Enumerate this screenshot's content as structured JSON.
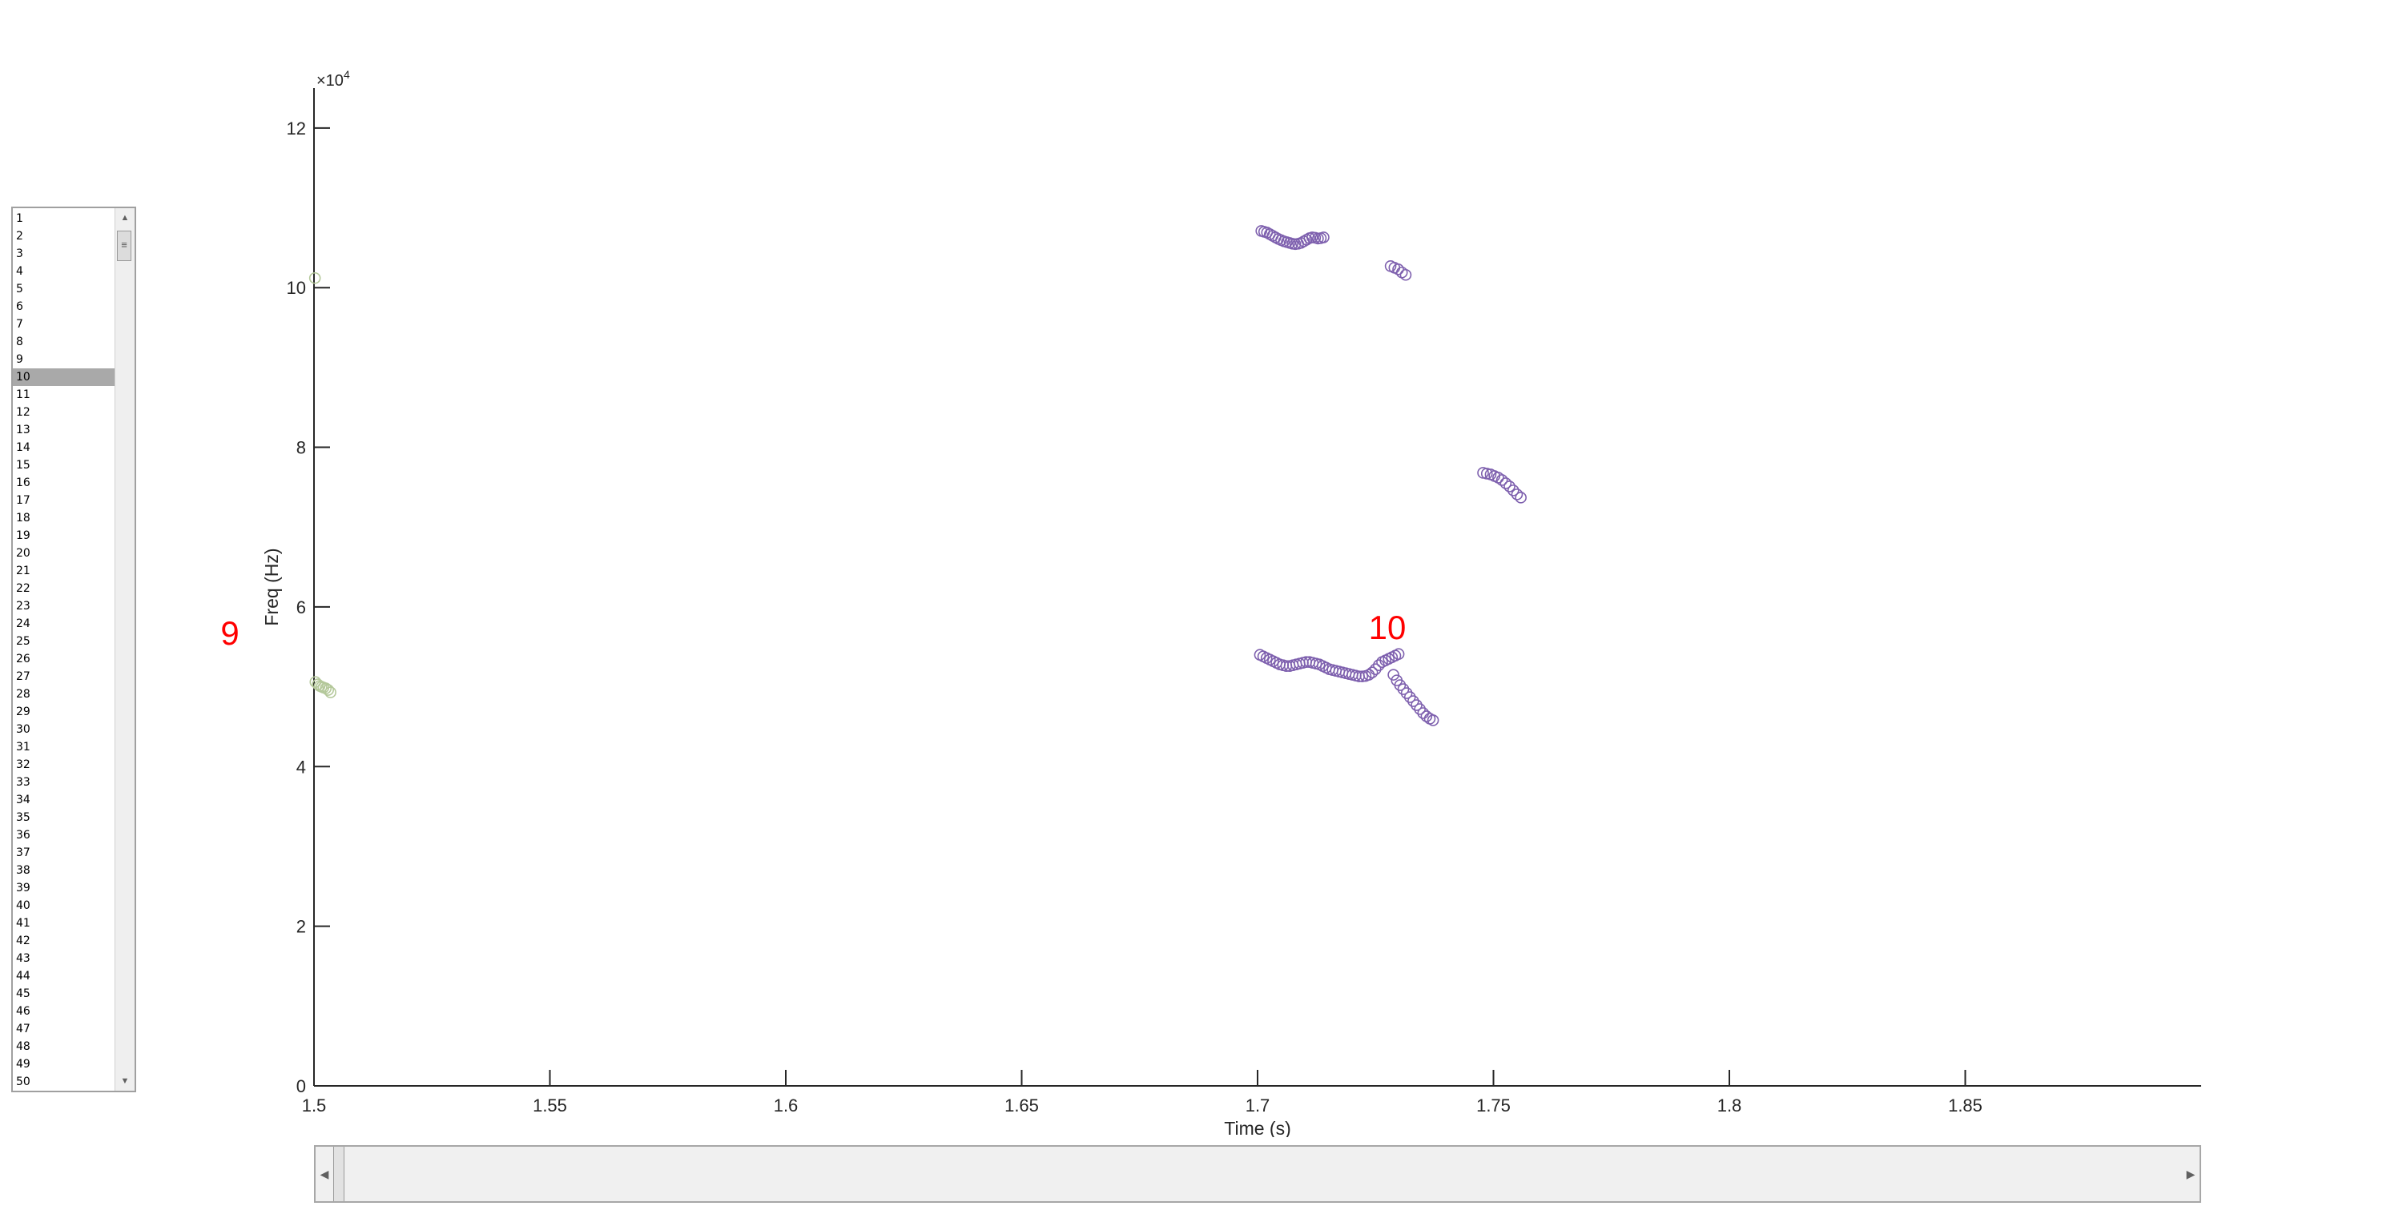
{
  "listbox": {
    "items": [
      "1",
      "2",
      "3",
      "4",
      "5",
      "6",
      "7",
      "8",
      "9",
      "10",
      "11",
      "12",
      "13",
      "14",
      "15",
      "16",
      "17",
      "18",
      "19",
      "20",
      "21",
      "22",
      "23",
      "24",
      "25",
      "26",
      "27",
      "28",
      "29",
      "30",
      "31",
      "32",
      "33",
      "34",
      "35",
      "36",
      "37",
      "38",
      "39",
      "40",
      "41",
      "42",
      "43",
      "44",
      "45",
      "46",
      "47",
      "48",
      "49",
      "50"
    ],
    "selected": "10"
  },
  "colors": {
    "series_a": "#b4c89a",
    "series_b": "#7e60ae",
    "annotation": "#ff0000",
    "axis": "#262626"
  },
  "chart_data": {
    "type": "scatter",
    "xlabel": "Time (s)",
    "ylabel": "Freq (Hz)",
    "y_exponent_label": "×10",
    "y_exponent_power": "4",
    "xlim": [
      1.5,
      1.9
    ],
    "ylim": [
      0,
      125000
    ],
    "x_ticks": [
      1.5,
      1.55,
      1.6,
      1.65,
      1.7,
      1.75,
      1.8,
      1.85
    ],
    "x_tick_labels": [
      "1.5",
      "1.55",
      "1.6",
      "1.65",
      "1.7",
      "1.75",
      "1.8",
      "1.85"
    ],
    "y_ticks": [
      0,
      20000,
      40000,
      60000,
      80000,
      100000,
      120000
    ],
    "y_tick_labels": [
      "0",
      "2",
      "4",
      "6",
      "8",
      "10",
      "12"
    ],
    "grid": false,
    "annotations": [
      {
        "text": "9",
        "color": "#ff0000"
      },
      {
        "text": "10",
        "x": 1.7275,
        "y": 57500,
        "color": "#ff0000"
      }
    ],
    "series": [
      {
        "color": "#b4c89a",
        "points": [
          [
            1.5002,
            101200
          ],
          [
            1.5003,
            50600
          ],
          [
            1.5008,
            50300
          ],
          [
            1.5012,
            50100
          ],
          [
            1.5016,
            50000
          ],
          [
            1.502,
            49900
          ],
          [
            1.5025,
            49800
          ],
          [
            1.503,
            49600
          ],
          [
            1.5035,
            49300
          ]
        ]
      },
      {
        "color": "#7e60ae",
        "points": [
          [
            1.7008,
            107100
          ],
          [
            1.7014,
            107000
          ],
          [
            1.702,
            106900
          ],
          [
            1.7026,
            106700
          ],
          [
            1.7032,
            106500
          ],
          [
            1.7038,
            106300
          ],
          [
            1.7044,
            106100
          ],
          [
            1.705,
            105950
          ],
          [
            1.7056,
            105800
          ],
          [
            1.7062,
            105700
          ],
          [
            1.7068,
            105600
          ],
          [
            1.7074,
            105500
          ],
          [
            1.708,
            105450
          ],
          [
            1.7086,
            105500
          ],
          [
            1.7092,
            105600
          ],
          [
            1.7098,
            105800
          ],
          [
            1.7104,
            106000
          ],
          [
            1.711,
            106200
          ],
          [
            1.7116,
            106300
          ],
          [
            1.7122,
            106250
          ],
          [
            1.7128,
            106150
          ],
          [
            1.7134,
            106200
          ],
          [
            1.714,
            106300
          ],
          [
            1.7282,
            102700
          ],
          [
            1.729,
            102500
          ],
          [
            1.7298,
            102300
          ],
          [
            1.7306,
            101900
          ],
          [
            1.7314,
            101600
          ],
          [
            1.7478,
            76800
          ],
          [
            1.7486,
            76700
          ],
          [
            1.7494,
            76600
          ],
          [
            1.7502,
            76400
          ],
          [
            1.751,
            76200
          ],
          [
            1.7518,
            75900
          ],
          [
            1.7526,
            75500
          ],
          [
            1.7534,
            75100
          ],
          [
            1.7542,
            74600
          ],
          [
            1.755,
            74100
          ],
          [
            1.7558,
            73700
          ],
          [
            1.7005,
            54000
          ],
          [
            1.7012,
            53800
          ],
          [
            1.7019,
            53600
          ],
          [
            1.7026,
            53400
          ],
          [
            1.7033,
            53200
          ],
          [
            1.704,
            53000
          ],
          [
            1.7047,
            52800
          ],
          [
            1.7054,
            52700
          ],
          [
            1.7061,
            52600
          ],
          [
            1.7068,
            52600
          ],
          [
            1.7075,
            52700
          ],
          [
            1.7082,
            52800
          ],
          [
            1.7089,
            52900
          ],
          [
            1.7096,
            53000
          ],
          [
            1.7103,
            53100
          ],
          [
            1.711,
            53100
          ],
          [
            1.7117,
            53000
          ],
          [
            1.7124,
            52900
          ],
          [
            1.7131,
            52800
          ],
          [
            1.7138,
            52600
          ],
          [
            1.7145,
            52400
          ],
          [
            1.7152,
            52200
          ],
          [
            1.7159,
            52100
          ],
          [
            1.7166,
            52000
          ],
          [
            1.7173,
            51900
          ],
          [
            1.718,
            51800
          ],
          [
            1.7187,
            51700
          ],
          [
            1.7194,
            51600
          ],
          [
            1.7201,
            51500
          ],
          [
            1.7208,
            51400
          ],
          [
            1.7215,
            51300
          ],
          [
            1.7222,
            51300
          ],
          [
            1.7229,
            51350
          ],
          [
            1.7236,
            51500
          ],
          [
            1.7243,
            51800
          ],
          [
            1.725,
            52200
          ],
          [
            1.7257,
            52700
          ],
          [
            1.7264,
            53100
          ],
          [
            1.7271,
            53300
          ],
          [
            1.7278,
            53500
          ],
          [
            1.7285,
            53700
          ],
          [
            1.7292,
            53900
          ],
          [
            1.7299,
            54100
          ],
          [
            1.7288,
            51500
          ],
          [
            1.7295,
            50800
          ],
          [
            1.7302,
            50200
          ],
          [
            1.7309,
            49700
          ],
          [
            1.7316,
            49200
          ],
          [
            1.7323,
            48700
          ],
          [
            1.733,
            48200
          ],
          [
            1.7337,
            47700
          ],
          [
            1.7344,
            47200
          ],
          [
            1.7351,
            46700
          ],
          [
            1.7358,
            46300
          ],
          [
            1.7365,
            46000
          ],
          [
            1.7372,
            45800
          ]
        ]
      }
    ]
  }
}
